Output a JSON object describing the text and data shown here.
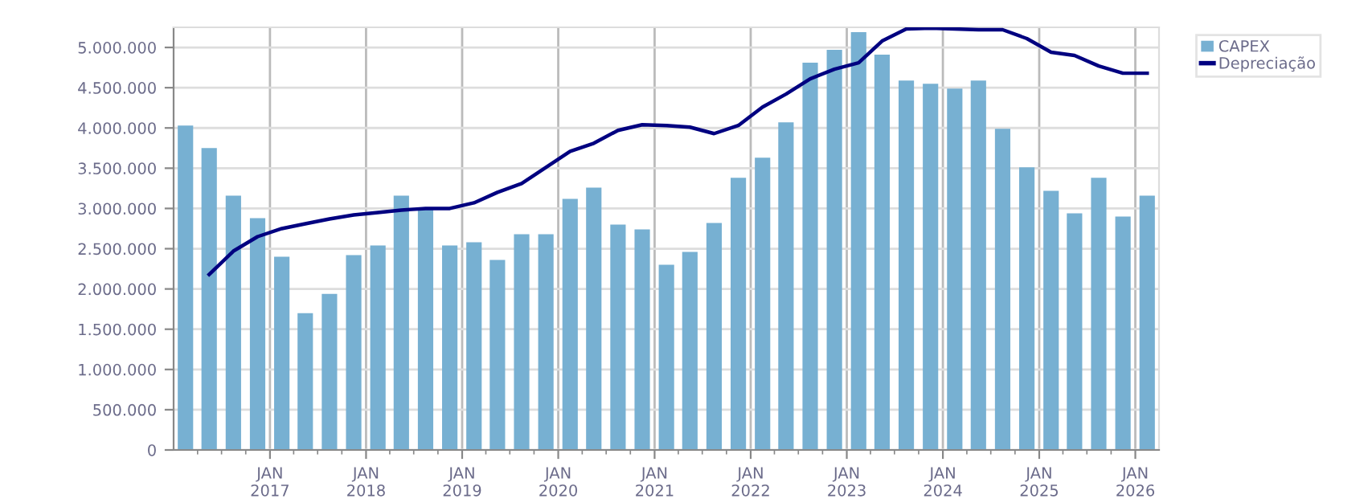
{
  "chart_data": {
    "type": "bar",
    "x": [
      "2016-02-15",
      "2016-05-15",
      "2016-08-15",
      "2016-11-15",
      "2017-02-15",
      "2017-05-15",
      "2017-08-15",
      "2017-11-15",
      "2018-02-15",
      "2018-05-15",
      "2018-08-15",
      "2018-11-15",
      "2019-02-15",
      "2019-05-15",
      "2019-08-15",
      "2019-11-15",
      "2020-02-15",
      "2020-05-15",
      "2020-08-15",
      "2020-11-15",
      "2021-02-15",
      "2021-05-15",
      "2021-08-15",
      "2021-11-15",
      "2022-02-15",
      "2022-05-15",
      "2022-08-15",
      "2022-11-15",
      "2023-02-15",
      "2023-05-15",
      "2023-08-15",
      "2023-11-15",
      "2024-02-15",
      "2024-05-15",
      "2024-08-15",
      "2024-11-15",
      "2025-02-15",
      "2025-05-15",
      "2025-08-15",
      "2025-11-15",
      "2026-02-15"
    ],
    "series": [
      {
        "name": "CAPEX",
        "color": "#77b0d2",
        "values": [
          4030000,
          3750000,
          3160000,
          2880000,
          2400000,
          1700000,
          1940000,
          2420000,
          2540000,
          3160000,
          3000000,
          2540000,
          2580000,
          2360000,
          2680000,
          2680000,
          3120000,
          3260000,
          2800000,
          2740000,
          2300000,
          2460000,
          2820000,
          3380000,
          3630000,
          4070000,
          4810000,
          4970000,
          5190000,
          4910000,
          4590000,
          4550000,
          4490000,
          4590000,
          3990000,
          3510000,
          3220000,
          2940000,
          3380000,
          2900000,
          3160000
        ]
      },
      {
        "name": "Depreciação",
        "type": "line",
        "color": "#000080",
        "x": [
          "2016-05-15",
          "2016-08-15",
          "2016-11-15",
          "2017-02-15",
          "2017-05-15",
          "2017-08-15",
          "2017-11-15",
          "2018-02-15",
          "2018-05-15",
          "2018-08-15",
          "2018-11-15",
          "2019-02-15",
          "2019-05-15",
          "2019-08-15",
          "2019-11-15",
          "2020-02-15",
          "2020-05-15",
          "2020-08-15",
          "2020-11-15",
          "2021-02-15",
          "2021-05-15",
          "2021-08-15",
          "2021-11-15",
          "2022-02-15",
          "2022-05-15",
          "2022-08-15",
          "2022-11-15",
          "2023-02-15",
          "2023-05-15",
          "2023-08-15",
          "2023-11-15",
          "2024-02-15",
          "2024-05-15",
          "2024-08-15",
          "2024-11-15",
          "2025-02-15",
          "2025-05-15",
          "2025-08-15",
          "2025-11-15",
          "2026-02-15"
        ],
        "values": [
          2180000,
          2470000,
          2650000,
          2750000,
          2810000,
          2870000,
          2920000,
          2950000,
          2980000,
          3000000,
          3000000,
          3070000,
          3200000,
          3310000,
          3510000,
          3710000,
          3810000,
          3970000,
          4040000,
          4030000,
          4010000,
          3930000,
          4030000,
          4260000,
          4420000,
          4610000,
          4730000,
          4810000,
          5080000,
          5230000,
          5240000,
          5230000,
          5220000,
          5220000,
          5110000,
          4940000,
          4900000,
          4770000,
          4680000,
          4680000
        ]
      }
    ],
    "xlim": [
      "2016-01-01",
      "2026-04-01"
    ],
    "xticks": [
      {
        "value": "2016-04-01",
        "label": null
      },
      {
        "value": "2016-07-01",
        "label": null
      },
      {
        "value": "2016-10-01",
        "label": null
      },
      {
        "value": "2017-01-01",
        "label": "JAN\n2017"
      },
      {
        "value": "2017-04-01",
        "label": null
      },
      {
        "value": "2017-07-01",
        "label": null
      },
      {
        "value": "2017-10-01",
        "label": null
      },
      {
        "value": "2018-01-01",
        "label": "JAN\n2018"
      },
      {
        "value": "2018-04-01",
        "label": null
      },
      {
        "value": "2018-07-01",
        "label": null
      },
      {
        "value": "2018-10-01",
        "label": null
      },
      {
        "value": "2019-01-01",
        "label": "JAN\n2019"
      },
      {
        "value": "2019-04-01",
        "label": null
      },
      {
        "value": "2019-07-01",
        "label": null
      },
      {
        "value": "2019-10-01",
        "label": null
      },
      {
        "value": "2020-01-01",
        "label": "JAN\n2020"
      },
      {
        "value": "2020-04-01",
        "label": null
      },
      {
        "value": "2020-07-01",
        "label": null
      },
      {
        "value": "2020-10-01",
        "label": null
      },
      {
        "value": "2021-01-01",
        "label": "JAN\n2021"
      },
      {
        "value": "2021-04-01",
        "label": null
      },
      {
        "value": "2021-07-01",
        "label": null
      },
      {
        "value": "2021-10-01",
        "label": null
      },
      {
        "value": "2022-01-01",
        "label": "JAN\n2022"
      },
      {
        "value": "2022-04-01",
        "label": null
      },
      {
        "value": "2022-07-01",
        "label": null
      },
      {
        "value": "2022-10-01",
        "label": null
      },
      {
        "value": "2023-01-01",
        "label": "JAN\n2023"
      },
      {
        "value": "2023-04-01",
        "label": null
      },
      {
        "value": "2023-07-01",
        "label": null
      },
      {
        "value": "2023-10-01",
        "label": null
      },
      {
        "value": "2024-01-01",
        "label": "JAN\n2024"
      },
      {
        "value": "2024-04-01",
        "label": null
      },
      {
        "value": "2024-07-01",
        "label": null
      },
      {
        "value": "2024-10-01",
        "label": null
      },
      {
        "value": "2025-01-01",
        "label": "JAN\n2025"
      },
      {
        "value": "2025-04-01",
        "label": null
      },
      {
        "value": "2025-07-01",
        "label": null
      },
      {
        "value": "2025-10-01",
        "label": null
      },
      {
        "value": "2026-01-01",
        "label": "JAN\n2026"
      }
    ],
    "ylim": [
      0,
      5250000
    ],
    "yticks": [
      {
        "value": 0,
        "label": "0"
      },
      {
        "value": 500000,
        "label": "500.000"
      },
      {
        "value": 1000000,
        "label": "1.000.000"
      },
      {
        "value": 1500000,
        "label": "1.500.000"
      },
      {
        "value": 2000000,
        "label": "2.000.000"
      },
      {
        "value": 2500000,
        "label": "2.500.000"
      },
      {
        "value": 3000000,
        "label": "3.000.000"
      },
      {
        "value": 3500000,
        "label": "3.500.000"
      },
      {
        "value": 4000000,
        "label": "4.000.000"
      },
      {
        "value": 4500000,
        "label": "4.500.000"
      },
      {
        "value": 5000000,
        "label": "5.000.000"
      }
    ],
    "grid": true,
    "legend": "top right",
    "marker": "none",
    "line_style": "solid"
  }
}
